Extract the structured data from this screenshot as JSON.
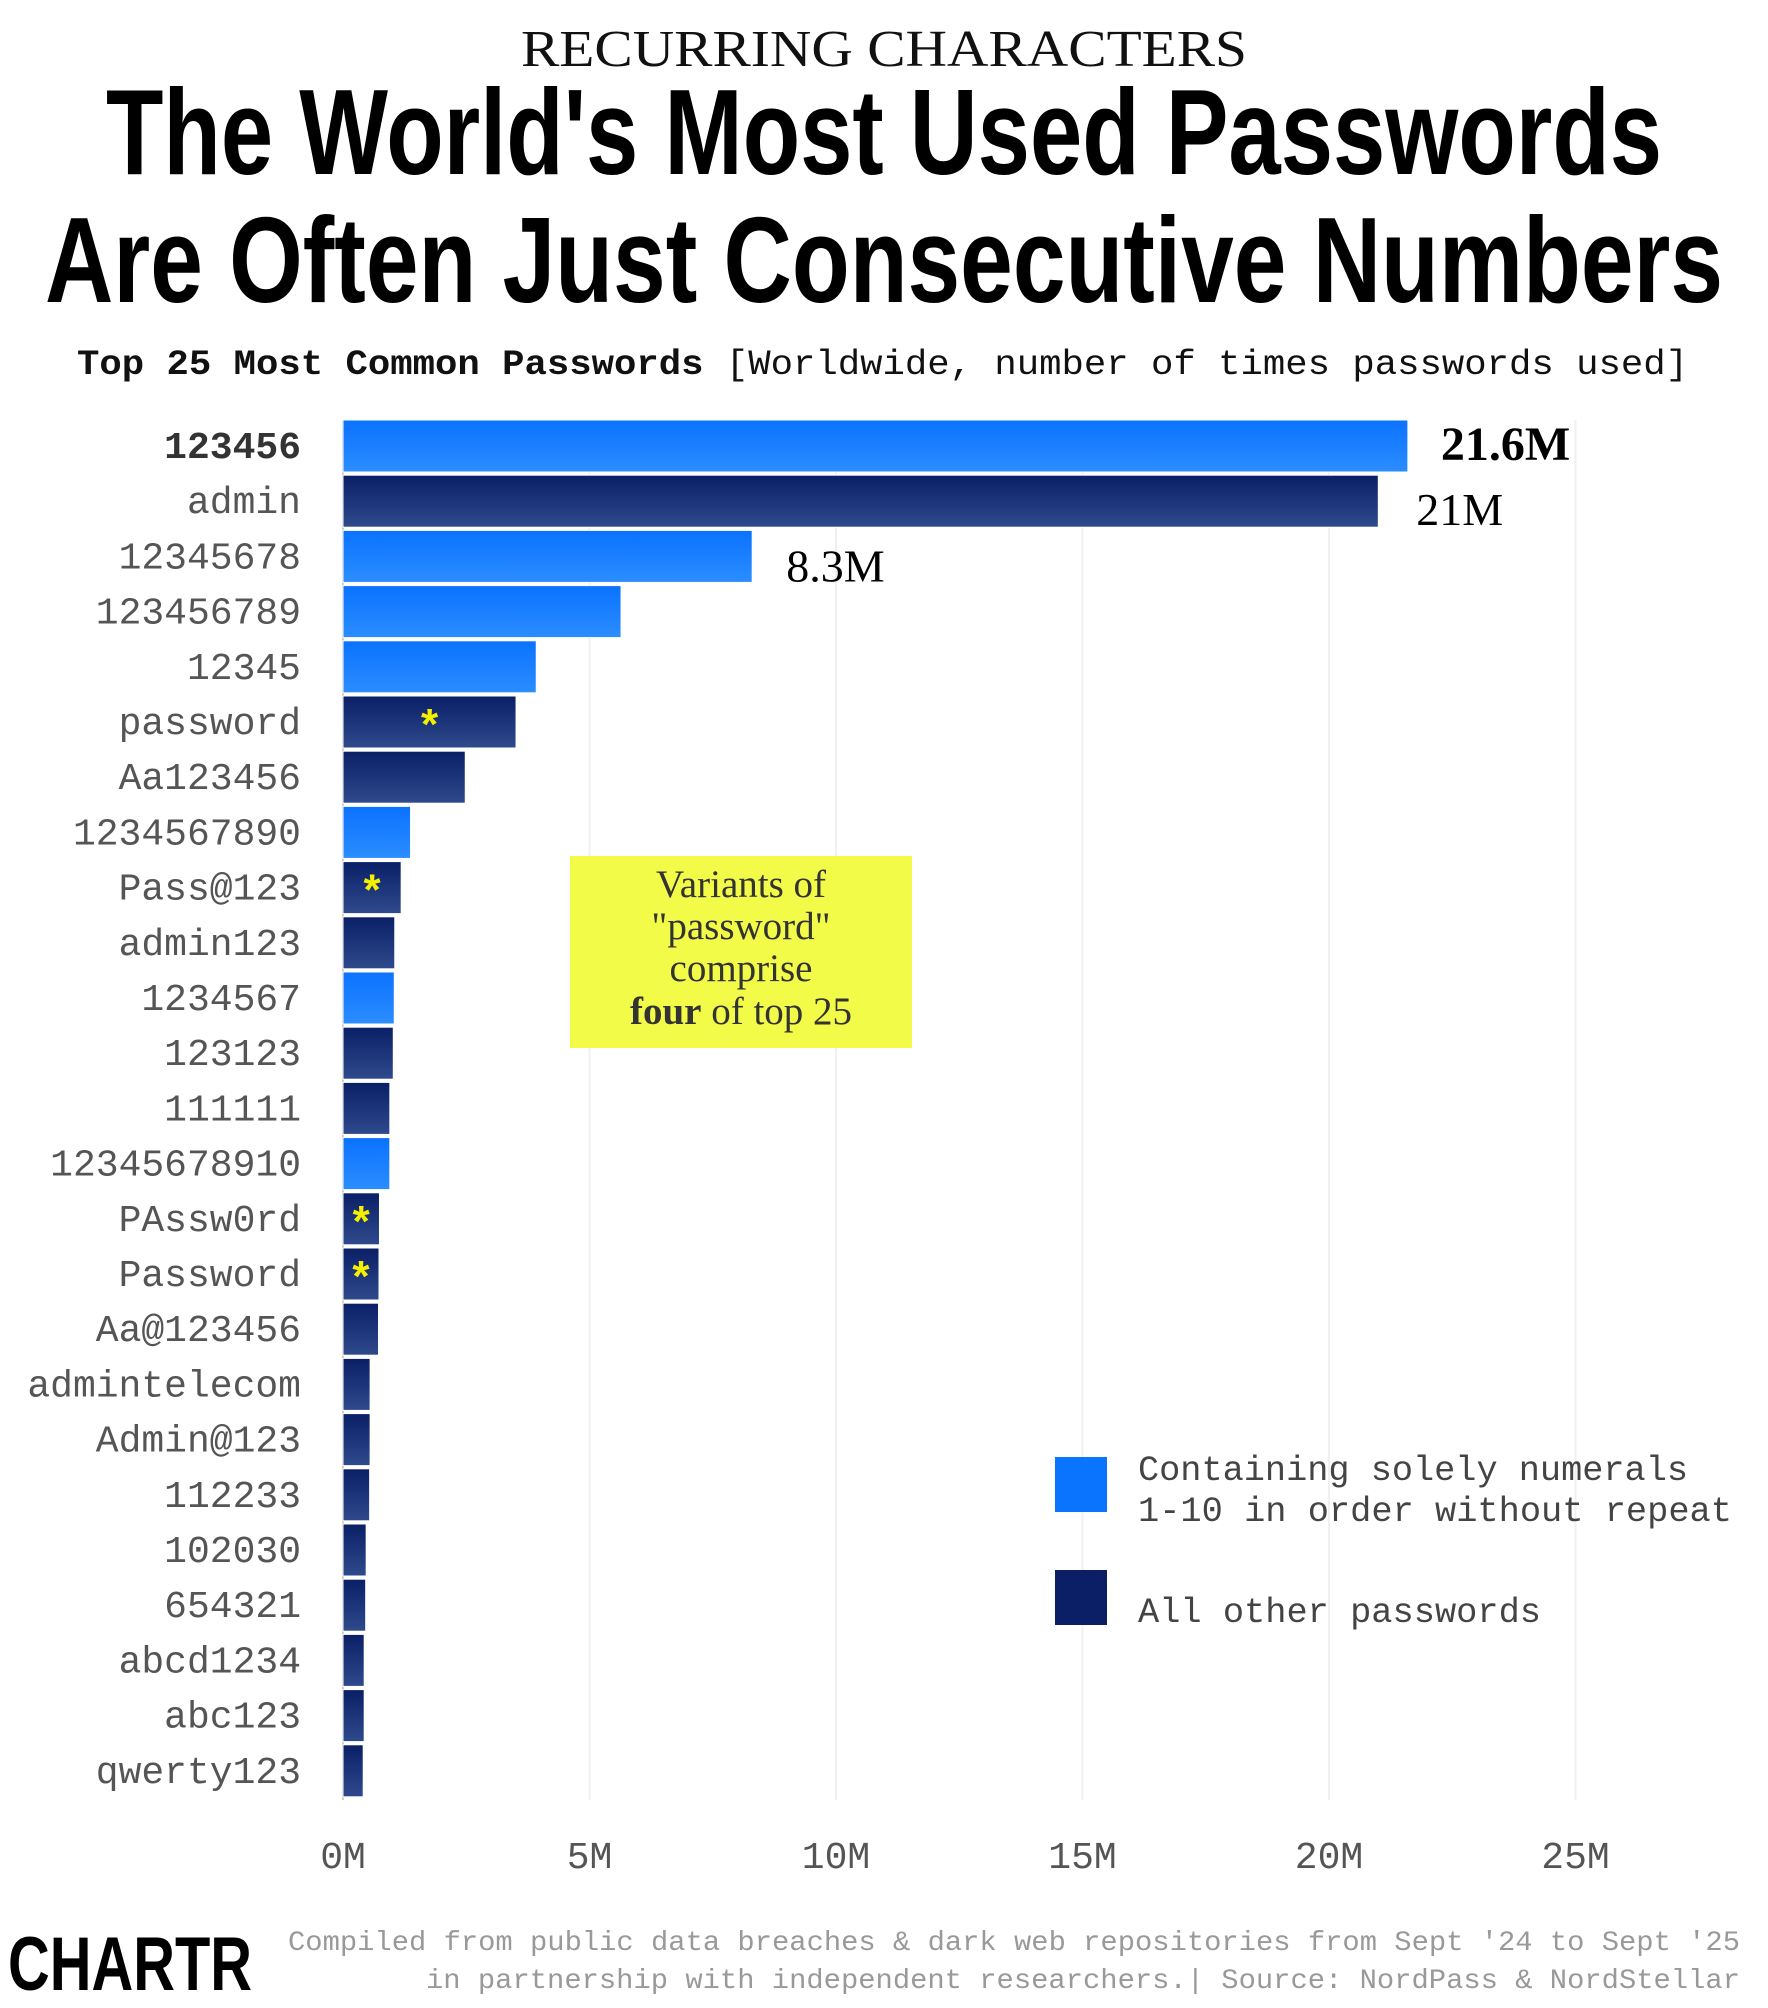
{
  "header": {
    "kicker": "RECURRING CHARACTERS",
    "title_line1": "The World's Most Used Passwords",
    "title_line2": "Are Often Just Consecutive Numbers",
    "subtitle_bold": "Top 25 Most Common Passwords",
    "subtitle_rest": " [Worldwide, number of times passwords used]"
  },
  "colors": {
    "sequential_numerals": "#0a74ff",
    "other": "#0b1f66",
    "annotation_bg": "#f2fb47",
    "asterisk": "#f5f000"
  },
  "chart_data": {
    "type": "bar",
    "orientation": "horizontal",
    "title": "Top 25 Most Common Passwords",
    "xlabel": "",
    "ylabel": "",
    "xlim": [
      0,
      27.5
    ],
    "x_unit": "M",
    "x_ticks": [
      "0M",
      "5M",
      "10M",
      "15M",
      "20M",
      "25M"
    ],
    "x_tick_values": [
      0,
      5,
      10,
      15,
      20,
      25
    ],
    "grid": "vertical",
    "legend_placement": "bottom-right",
    "categories": [
      "123456",
      "admin",
      "12345678",
      "123456789",
      "12345",
      "password",
      "Aa123456",
      "1234567890",
      "Pass@123",
      "admin123",
      "1234567",
      "123123",
      "111111",
      "12345678910",
      "PAssw0rd",
      "Password",
      "Aa@123456",
      "admintelecom",
      "Admin@123",
      "112233",
      "102030",
      "654321",
      "abcd1234",
      "abc123",
      "qwerty123"
    ],
    "values": [
      21.6,
      21.0,
      8.3,
      5.64,
      3.92,
      3.51,
      2.48,
      1.37,
      1.18,
      1.05,
      1.04,
      1.02,
      0.95,
      0.95,
      0.74,
      0.73,
      0.72,
      0.55,
      0.55,
      0.54,
      0.47,
      0.46,
      0.43,
      0.43,
      0.41
    ],
    "group": [
      "sequential",
      "other",
      "sequential",
      "sequential",
      "sequential",
      "other",
      "other",
      "sequential",
      "other",
      "other",
      "sequential",
      "other",
      "other",
      "sequential",
      "other",
      "other",
      "other",
      "other",
      "other",
      "other",
      "other",
      "other",
      "other",
      "other",
      "other"
    ],
    "password_variant": [
      false,
      false,
      false,
      false,
      false,
      true,
      false,
      false,
      true,
      false,
      false,
      false,
      false,
      false,
      true,
      true,
      false,
      false,
      false,
      false,
      false,
      false,
      false,
      false,
      false
    ],
    "data_labels": [
      {
        "index": 0,
        "text": "21.6M"
      },
      {
        "index": 1,
        "text": "21M"
      },
      {
        "index": 2,
        "text": "8.3M"
      }
    ],
    "legend": [
      {
        "key": "sequential",
        "lines": [
          "Containing solely numerals",
          "1-10 in order without repeat"
        ]
      },
      {
        "key": "other",
        "lines": [
          "All other passwords"
        ]
      }
    ],
    "annotation": {
      "lines": [
        "Variants of",
        "\"password\"",
        "comprise"
      ],
      "last_bold": "four",
      "last_rest": " of top 25"
    }
  },
  "footer": {
    "logo": "CHARTR",
    "source_line1": "Compiled from public data breaches & dark web repositories from Sept '24 to Sept '25",
    "source_line2": "in partnership with independent researchers.| Source: NordPass & NordStellar"
  }
}
